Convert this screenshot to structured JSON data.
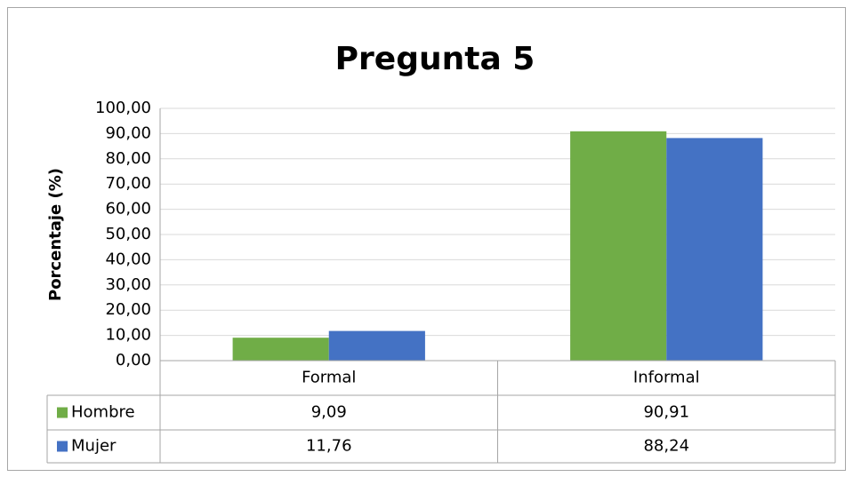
{
  "chart_data": {
    "type": "bar",
    "title": "Pregunta 5",
    "y_label": "Porcentaje (%)",
    "categories": [
      "Formal",
      "Informal"
    ],
    "series": [
      {
        "name": "Hombre",
        "color": "#70ad47",
        "values": [
          9.09,
          90.91
        ],
        "value_labels": [
          "9,09",
          "90,91"
        ]
      },
      {
        "name": "Mujer",
        "color": "#4472c4",
        "values": [
          11.76,
          88.24
        ],
        "value_labels": [
          "11,76",
          "88,24"
        ]
      }
    ],
    "ylim": [
      0,
      100
    ],
    "yticks": [
      {
        "value": 0,
        "label": "0,00"
      },
      {
        "value": 10,
        "label": "10,00"
      },
      {
        "value": 20,
        "label": "20,00"
      },
      {
        "value": 30,
        "label": "30,00"
      },
      {
        "value": 40,
        "label": "40,00"
      },
      {
        "value": 50,
        "label": "50,00"
      },
      {
        "value": 60,
        "label": "60,00"
      },
      {
        "value": 70,
        "label": "70,00"
      },
      {
        "value": 80,
        "label": "80,00"
      },
      {
        "value": 90,
        "label": "90,00"
      },
      {
        "value": 100,
        "label": "100,00"
      }
    ],
    "grid": true
  }
}
